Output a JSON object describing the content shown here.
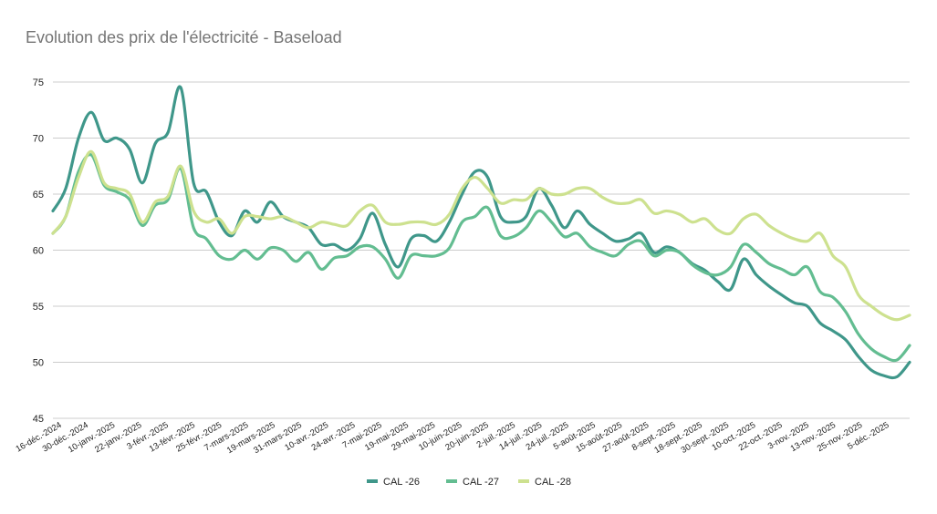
{
  "chart_data": {
    "type": "line",
    "title": "Evolution des prix de l'électricité - Baseload",
    "xlabel": "",
    "ylabel": "",
    "ylim": [
      45,
      75
    ],
    "yticks": [
      45,
      50,
      55,
      60,
      65,
      70,
      75
    ],
    "grid": true,
    "legend_position": "bottom",
    "x_tick_labels": [
      "16-déc.-2024",
      "30-déc.-2024",
      "10-janv.-2025",
      "22-janv.-2025",
      "3-févr.-2025",
      "13-févr.-2025",
      "25-févr.-2025",
      "7-mars-2025",
      "19-mars-2025",
      "31-mars-2025",
      "10-avr.-2025",
      "24-avr.-2025",
      "7-mai-2025",
      "19-mai-2025",
      "29-mai-2025",
      "10-juin-2025",
      "20-juin-2025",
      "2-juil.-2025",
      "14-juil.-2025",
      "24-juil.-2025",
      "5-août-2025",
      "15-août-2025",
      "27-août-2025",
      "8-sept.-2025",
      "18-sept.-2025",
      "30-sept.-2025",
      "10-oct.-2025",
      "22-oct.-2025",
      "3-nov.-2025",
      "13-nov.-2025",
      "25-nov.-2025",
      "5-déc.-2025"
    ],
    "series": [
      {
        "name": "CAL -26",
        "color": "#3f978a",
        "values": [
          63.5,
          65.5,
          70,
          72.3,
          69.8,
          70,
          69,
          66,
          69.5,
          70.5,
          74.5,
          66,
          65.2,
          62.5,
          61.3,
          63.5,
          62.5,
          64.3,
          63,
          62.5,
          62,
          60.5,
          60.5,
          60,
          61,
          63.3,
          60.5,
          58.5,
          61,
          61.3,
          60.8,
          62.5,
          65,
          67,
          66.5,
          63,
          62.5,
          63,
          65.5,
          64,
          62,
          63.5,
          62.3,
          61.5,
          60.8,
          61,
          61.5,
          59.8,
          60.3,
          59.8,
          58.8,
          58.2,
          57.2,
          56.5,
          59.2,
          57.8,
          56.8,
          56,
          55.3,
          55,
          53.5,
          52.8,
          52,
          50.5,
          49.3,
          48.8,
          48.7,
          50
        ]
      },
      {
        "name": "CAL -27",
        "color": "#63bd91",
        "values": [
          61.5,
          63,
          67,
          68.5,
          65.8,
          65.2,
          64.5,
          62.2,
          64,
          64.5,
          67.3,
          62,
          61,
          59.5,
          59.2,
          60,
          59.2,
          60.2,
          60,
          59,
          59.8,
          58.3,
          59.3,
          59.5,
          60.3,
          60.3,
          59.2,
          57.5,
          59.5,
          59.5,
          59.5,
          60.2,
          62.5,
          63,
          63.8,
          61.3,
          61.2,
          62,
          63.5,
          62.5,
          61.2,
          61.5,
          60.3,
          59.8,
          59.5,
          60.5,
          60.8,
          59.5,
          60,
          59.8,
          58.7,
          58,
          57.8,
          58.5,
          60.5,
          59.8,
          58.8,
          58.3,
          57.8,
          58.5,
          56.3,
          55.8,
          54.5,
          52.5,
          51.2,
          50.5,
          50.2,
          51.5
        ]
      },
      {
        "name": "CAL -28",
        "color": "#cde18f",
        "values": [
          61.5,
          63,
          66.5,
          68.8,
          66,
          65.5,
          65,
          62.5,
          64.3,
          64.8,
          67.5,
          63.5,
          62.5,
          62.8,
          61.5,
          63,
          63,
          62.8,
          63,
          62.5,
          62,
          62.5,
          62.3,
          62.2,
          63.5,
          64,
          62.5,
          62.3,
          62.5,
          62.5,
          62.3,
          63.2,
          65.5,
          66.5,
          65.5,
          64.2,
          64.5,
          64.5,
          65.5,
          65,
          65,
          65.5,
          65.5,
          64.7,
          64.2,
          64.2,
          64.5,
          63.3,
          63.5,
          63.2,
          62.5,
          62.8,
          61.8,
          61.5,
          62.8,
          63.2,
          62.2,
          61.5,
          61,
          60.8,
          61.5,
          59.5,
          58.5,
          56,
          55,
          54.2,
          53.8,
          54.2
        ]
      }
    ]
  }
}
